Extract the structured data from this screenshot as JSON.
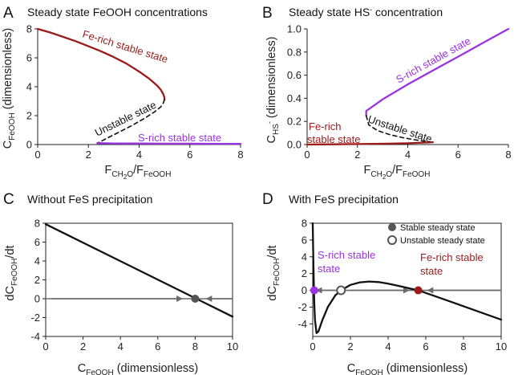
{
  "chart_data": [
    {
      "id": "A",
      "panel_label": "A",
      "type": "line",
      "title": "Steady state FeOOH concentrations",
      "xlabel": {
        "main": "F",
        "sub1": "CH",
        "sub2": "2",
        "sub3": "O",
        "slash": "/F",
        "sub4": "FeOOH"
      },
      "ylabel": {
        "main": "C",
        "sub": "FeOOH",
        "rest": " (dimensionless)"
      },
      "xlim": [
        0,
        8
      ],
      "ylim": [
        0,
        8
      ],
      "xticks": [
        0,
        2,
        4,
        6,
        8
      ],
      "yticks": [
        0,
        2,
        4,
        6,
        8
      ],
      "colors": {
        "fe_rich": "#9b1b1b",
        "s_rich": "#9a33e0",
        "unstable": "#111111"
      },
      "series": [
        {
          "name": "Fe-rich stable state",
          "style": "solid",
          "color": "#9b1b1b",
          "x": [
            0,
            0.5,
            1,
            1.5,
            2,
            2.5,
            3,
            3.5,
            4,
            4.4,
            4.7,
            4.85,
            4.95,
            5.0,
            5.0
          ],
          "y": [
            8.0,
            7.75,
            7.45,
            7.15,
            6.8,
            6.45,
            6.05,
            5.6,
            5.05,
            4.55,
            4.1,
            3.8,
            3.5,
            3.25,
            3.1
          ]
        },
        {
          "name": "Unstable state",
          "style": "dashed",
          "color": "#111111",
          "x": [
            5.0,
            4.95,
            4.85,
            4.6,
            4.2,
            3.7,
            3.2,
            2.8,
            2.5,
            2.35
          ],
          "y": [
            3.1,
            2.85,
            2.6,
            2.25,
            1.8,
            1.3,
            0.85,
            0.5,
            0.22,
            0.1
          ]
        },
        {
          "name": "S-rich stable state",
          "style": "solid",
          "color": "#9a33e0",
          "x": [
            2.35,
            3,
            4,
            5,
            6,
            7,
            8
          ],
          "y": [
            0.1,
            0.08,
            0.07,
            0.06,
            0.06,
            0.05,
            0.05
          ]
        }
      ],
      "annotations": [
        {
          "text": "Fe-rich stable state",
          "color": "#9b1b1b"
        },
        {
          "text": "Unstable state",
          "color": "#111111"
        },
        {
          "text": "S-rich stable state",
          "color": "#9a33e0"
        }
      ]
    },
    {
      "id": "B",
      "panel_label": "B",
      "type": "line",
      "title": {
        "main": "Steady state HS",
        "sup": "-",
        "rest": " concentration"
      },
      "xlabel": {
        "main": "F",
        "sub1": "CH",
        "sub2": "2",
        "sub3": "O",
        "slash": "/F",
        "sub4": "FeOOH"
      },
      "ylabel": {
        "main": "C",
        "sub": "HS",
        "sup": "-",
        "rest": " (dimensionless)"
      },
      "xlim": [
        0,
        8
      ],
      "ylim": [
        0,
        1.0
      ],
      "xticks": [
        0,
        2,
        4,
        6,
        8
      ],
      "yticks": [
        "0.0",
        "0.2",
        "0.4",
        "0.6",
        "0.8",
        "1.0"
      ],
      "colors": {
        "fe_rich": "#9b1b1b",
        "s_rich": "#9a33e0",
        "unstable": "#111111"
      },
      "series": [
        {
          "name": "S-rich stable state",
          "style": "solid",
          "color": "#9a33e0",
          "x": [
            2.35,
            2.35,
            3,
            4,
            5,
            6,
            7,
            8
          ],
          "y": [
            0.25,
            0.29,
            0.39,
            0.52,
            0.64,
            0.76,
            0.88,
            1.0
          ]
        },
        {
          "name": "Unstable state",
          "style": "dashed",
          "color": "#111111",
          "x": [
            2.35,
            2.45,
            2.8,
            3.3,
            3.8,
            4.3,
            4.8,
            5.0
          ],
          "y": [
            0.25,
            0.17,
            0.12,
            0.085,
            0.06,
            0.04,
            0.025,
            0.02
          ]
        },
        {
          "name": "Fe-rich stable state",
          "style": "solid",
          "color": "#9b1b1b",
          "x": [
            0,
            1,
            2,
            3,
            4,
            5.0
          ],
          "y": [
            0.0,
            0.002,
            0.004,
            0.007,
            0.011,
            0.02
          ]
        }
      ],
      "annotations": [
        {
          "text": "S-rich stable state",
          "color": "#9a33e0"
        },
        {
          "text": "Unstable state",
          "color": "#111111"
        },
        {
          "text": "Fe-rich",
          "color": "#9b1b1b"
        },
        {
          "text": "stable state",
          "color": "#9b1b1b"
        }
      ]
    },
    {
      "id": "C",
      "panel_label": "C",
      "type": "line",
      "title": "Without FeS precipitation",
      "xlabel": {
        "main": "C",
        "sub": "FeOOH",
        "rest": " (dimensionless)"
      },
      "ylabel": {
        "main": "dC",
        "sub": "FeOOH",
        "rest": "/dt"
      },
      "xlim": [
        0,
        10
      ],
      "ylim": [
        -4,
        8
      ],
      "xticks": [
        0,
        2,
        4,
        6,
        8,
        10
      ],
      "yticks": [
        8,
        6,
        4,
        2,
        0,
        -2,
        -4
      ],
      "series": [
        {
          "name": "dC/dt",
          "style": "solid",
          "color": "#111111",
          "x": [
            0,
            10
          ],
          "y": [
            7.9,
            -1.9
          ]
        }
      ],
      "zero_line": {
        "xrange": [
          0,
          10
        ],
        "color": "#6b6b6b"
      },
      "arrows": [
        {
          "from": 0.3,
          "to": 7.3,
          "direction": "right"
        },
        {
          "from": 10.0,
          "to": 8.6,
          "direction": "left"
        }
      ],
      "points": [
        {
          "x": 8.0,
          "y": 0,
          "kind": "stable",
          "color": "#555555"
        }
      ]
    },
    {
      "id": "D",
      "panel_label": "D",
      "type": "line",
      "title": "With FeS precipitation",
      "xlabel": {
        "main": "C",
        "sub": "FeOOH",
        "rest": " (dimensionless)"
      },
      "ylabel": {
        "main": "dC",
        "sub": "FeOOH",
        "rest": "/dt"
      },
      "xlim": [
        0,
        10
      ],
      "ylim": [
        -5.5,
        8
      ],
      "xticks": [
        0,
        2,
        4,
        6,
        8,
        10
      ],
      "yticks": [
        8,
        6,
        4,
        2,
        0,
        -2,
        -4
      ],
      "series": [
        {
          "name": "dC/dt",
          "style": "solid",
          "color": "#111111",
          "x": [
            0.0,
            0.02,
            0.05,
            0.08,
            0.12,
            0.2,
            0.3,
            0.5,
            0.8,
            1.2,
            1.5,
            2.0,
            2.5,
            3.0,
            3.5,
            4.0,
            4.5,
            5.0,
            5.6,
            6.5,
            7.5,
            8.5,
            9.5,
            10.0
          ],
          "y": [
            8.0,
            5.0,
            1.5,
            -1.5,
            -3.5,
            -5.1,
            -4.9,
            -3.6,
            -2.0,
            -0.6,
            0.0,
            0.65,
            0.95,
            1.05,
            0.98,
            0.8,
            0.55,
            0.3,
            0.0,
            -0.7,
            -1.5,
            -2.3,
            -3.1,
            -3.5
          ]
        }
      ],
      "zero_line": {
        "xrange": [
          0,
          10
        ],
        "color": "#6b6b6b"
      },
      "arrows": [
        {
          "from": 1.2,
          "to": 0.2,
          "direction": "left"
        },
        {
          "from": 2.0,
          "to": 5.1,
          "direction": "right"
        },
        {
          "from": 10.0,
          "to": 6.1,
          "direction": "left"
        }
      ],
      "points": [
        {
          "x": 0.08,
          "y": 0,
          "kind": "stable",
          "color": "#9a33e0"
        },
        {
          "x": 1.5,
          "y": 0,
          "kind": "unstable",
          "color": "#555555"
        },
        {
          "x": 5.6,
          "y": 0,
          "kind": "stable",
          "color": "#9b1b1b"
        }
      ],
      "legend": [
        {
          "label": "Stable steady state",
          "kind": "stable"
        },
        {
          "label": "Unstable steady state",
          "kind": "unstable"
        }
      ],
      "annotations": [
        {
          "text": "S-rich stable",
          "color": "#9a33e0"
        },
        {
          "text": "state",
          "color": "#9a33e0"
        },
        {
          "text": "Fe-rich stable",
          "color": "#9b1b1b"
        },
        {
          "text": "state",
          "color": "#9b1b1b"
        }
      ]
    }
  ]
}
